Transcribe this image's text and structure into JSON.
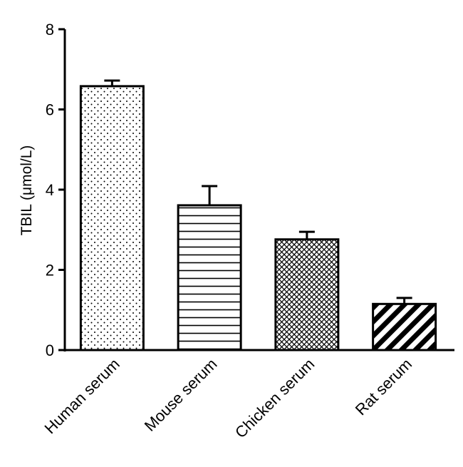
{
  "chart_data": {
    "type": "bar",
    "title": "",
    "xlabel": "",
    "ylabel": "TBIL (μmol/L)",
    "ylim": [
      0,
      8
    ],
    "yticks": [
      0,
      2,
      4,
      6,
      8
    ],
    "categories": [
      "Human serum",
      "Mouse serum",
      "Chicken serum",
      "Rat serum"
    ],
    "values": [
      6.58,
      3.61,
      2.76,
      1.15
    ],
    "errors": [
      0.14,
      0.48,
      0.19,
      0.15
    ],
    "fill_patterns": [
      "dots",
      "horizontal-lines",
      "crosshatch",
      "diagonal-stripes"
    ],
    "grid": false,
    "legend": "none"
  },
  "colors": {
    "ink": "#000000",
    "background": "#ffffff"
  }
}
